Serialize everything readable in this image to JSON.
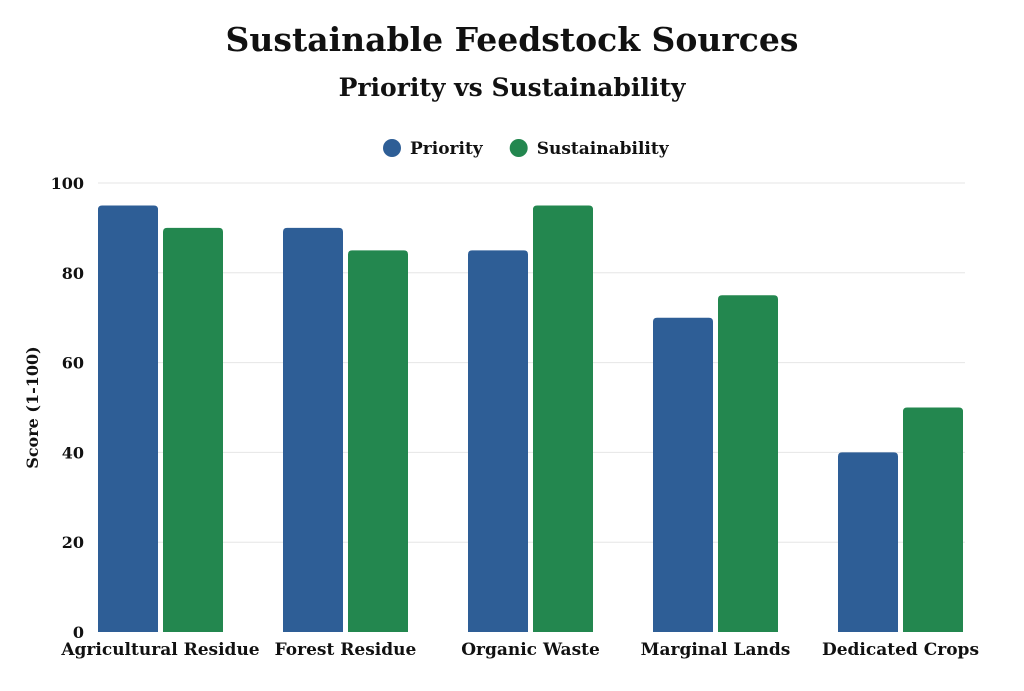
{
  "chart_data": {
    "type": "bar",
    "title": "Sustainable Feedstock Sources",
    "subtitle": "Priority vs Sustainability",
    "xlabel": "",
    "ylabel": "Score (1-100)",
    "ylim": [
      0,
      100
    ],
    "yticks": [
      0,
      20,
      40,
      60,
      80,
      100
    ],
    "grid": true,
    "legend_placement": "top",
    "categories": [
      "Agricultural Residue",
      "Forest Residue",
      "Organic Waste",
      "Marginal Lands",
      "Dedicated Crops"
    ],
    "series": [
      {
        "name": "Priority",
        "color": "#2E5E96",
        "values": [
          95,
          90,
          85,
          70,
          40
        ]
      },
      {
        "name": "Sustainability",
        "color": "#23874F",
        "values": [
          90,
          85,
          95,
          75,
          50
        ]
      }
    ]
  }
}
